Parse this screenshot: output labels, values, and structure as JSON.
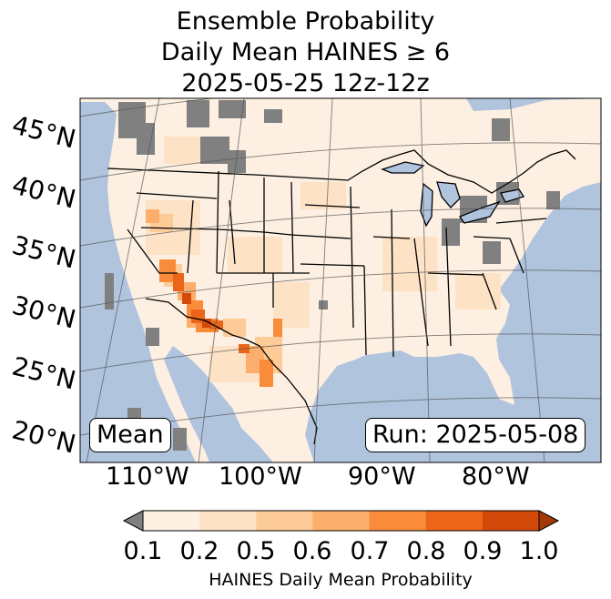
{
  "title": {
    "line1": "Ensemble Probability",
    "line2": "Daily Mean HAINES ≥ 6",
    "line3": "2025-05-25 12z-12z"
  },
  "map": {
    "region": "Contiguous United States",
    "lat_labels": [
      "45°N",
      "40°N",
      "35°N",
      "30°N",
      "25°N",
      "20°N"
    ],
    "lon_labels": [
      "110°W",
      "100°W",
      "90°W",
      "80°W"
    ],
    "ocean_color": "#b0c4de",
    "land_color": "#fdf0e2",
    "missing_color": "#808080"
  },
  "stat_label": "Mean",
  "run_label": "Run: 2025-05-08",
  "colorbar": {
    "ticks": [
      "0.1",
      "0.2",
      "0.5",
      "0.6",
      "0.7",
      "0.8",
      "0.9",
      "1.0"
    ],
    "colors": [
      "#fef0e2",
      "#fde2c6",
      "#fdcb98",
      "#fcae6c",
      "#f88c3a",
      "#eb6618",
      "#d2490a"
    ],
    "under_color": "#808080",
    "over_color": "#a33a04",
    "label": "HAINES Daily Mean Probability"
  }
}
